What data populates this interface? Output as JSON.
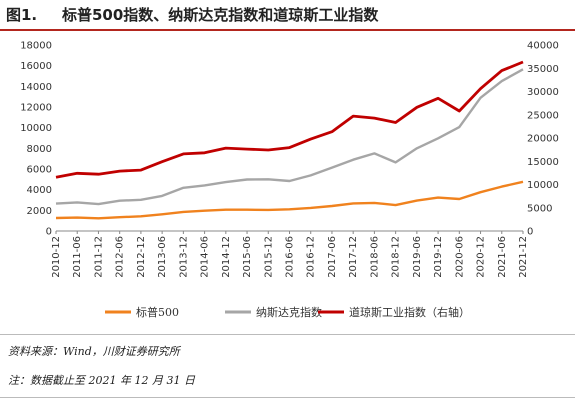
{
  "figure_number": "图1.",
  "title": "标普500指数、纳斯达克指数和道琼斯工业指数",
  "source_note": "资料来源：Wind，川财证券研究所",
  "date_note": "注：数据截止至 2021 年 12 月 31 日",
  "colors": {
    "sp500": "#f0821e",
    "nasdaq": "#a6a6a6",
    "dow": "#c00000",
    "accent": "#b3261e"
  },
  "chart_data": {
    "type": "line",
    "title": "",
    "x_labels": [
      "2010-12",
      "2011-06",
      "2011-12",
      "2012-06",
      "2012-12",
      "2013-06",
      "2013-12",
      "2014-06",
      "2014-12",
      "2015-06",
      "2015-12",
      "2016-06",
      "2016-12",
      "2017-06",
      "2017-12",
      "2018-06",
      "2018-12",
      "2019-06",
      "2019-12",
      "2020-06",
      "2020-12",
      "2021-06",
      "2021-12"
    ],
    "y_left": {
      "min": 0,
      "max": 18000,
      "ticks": [
        0,
        2000,
        4000,
        6000,
        8000,
        10000,
        12000,
        14000,
        16000,
        18000
      ]
    },
    "y_right": {
      "min": 0,
      "max": 40000,
      "ticks": [
        0,
        5000,
        10000,
        15000,
        20000,
        25000,
        30000,
        35000,
        40000
      ]
    },
    "series": [
      {
        "name": "标普500",
        "axis": "left",
        "values": [
          1258,
          1295,
          1230,
          1340,
          1426,
          1620,
          1848,
          1960,
          2060,
          2063,
          2044,
          2099,
          2239,
          2423,
          2674,
          2718,
          2507,
          2942,
          3231,
          3100,
          3756,
          4298,
          4766
        ]
      },
      {
        "name": "纳斯达克指数",
        "axis": "left",
        "values": [
          2653,
          2770,
          2605,
          2935,
          3020,
          3400,
          4177,
          4410,
          4736,
          4987,
          5007,
          4843,
          5383,
          6140,
          6903,
          7510,
          6635,
          8006,
          8973,
          10059,
          12888,
          14504,
          15645
        ]
      },
      {
        "name": "道琼斯工业指数（右轴）",
        "axis": "right",
        "values": [
          11578,
          12414,
          12218,
          12880,
          13104,
          14910,
          16577,
          16827,
          17823,
          17620,
          17425,
          17930,
          19763,
          21350,
          24719,
          24271,
          23327,
          26600,
          28538,
          25813,
          30606,
          34503,
          36338
        ]
      }
    ],
    "legend": {
      "placement": "bottom",
      "entries": [
        "标普500",
        "纳斯达克指数",
        "道琼斯工业指数（右轴）"
      ]
    },
    "grid": false
  }
}
